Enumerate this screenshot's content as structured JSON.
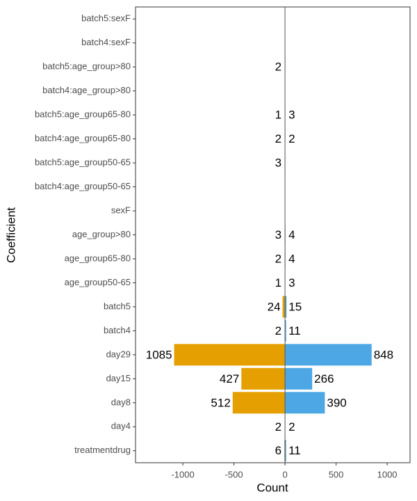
{
  "chart_data": {
    "type": "bar",
    "x_label": "Count",
    "y_label": "Coefficient",
    "categories": [
      "batch5:sexF",
      "batch4:sexF",
      "batch5:age_group>80",
      "batch4:age_group>80",
      "batch5:age_group65-80",
      "batch4:age_group65-80",
      "batch5:age_group50-65",
      "batch4:age_group50-65",
      "sexF",
      "age_group>80",
      "age_group65-80",
      "age_group50-65",
      "batch5",
      "batch4",
      "day29",
      "day15",
      "day8",
      "day4",
      "treatmentdrug"
    ],
    "series": [
      {
        "color": "#e69f00",
        "values": [
          null,
          null,
          -2,
          null,
          -1,
          -2,
          -3,
          null,
          null,
          -3,
          -2,
          -1,
          -24,
          -2,
          -1085,
          -427,
          -512,
          -2,
          -6
        ],
        "value_labels": [
          null,
          null,
          "2",
          null,
          "1",
          "2",
          "3",
          null,
          null,
          "3",
          "2",
          "1",
          "24",
          "2",
          "1085",
          "427",
          "512",
          "2",
          "6"
        ]
      },
      {
        "color": "#4ea7e5",
        "values": [
          null,
          null,
          null,
          null,
          3,
          2,
          null,
          null,
          null,
          4,
          4,
          3,
          15,
          11,
          848,
          266,
          390,
          2,
          11
        ],
        "value_labels": [
          null,
          null,
          null,
          null,
          "3",
          "2",
          null,
          null,
          null,
          "4",
          "4",
          "3",
          "15",
          "11",
          "848",
          "266",
          "390",
          "2",
          "11"
        ]
      }
    ],
    "xlim": [
      -1463,
      1224
    ],
    "xticks": [
      -1000,
      -500,
      0,
      500,
      1000
    ]
  }
}
